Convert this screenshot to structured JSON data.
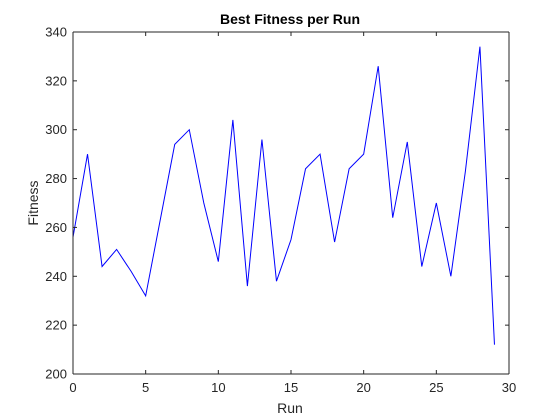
{
  "chart_data": {
    "type": "line",
    "title": "Best Fitness per Run",
    "xlabel": "Run",
    "ylabel": "Fitness",
    "xlim": [
      0,
      30
    ],
    "ylim": [
      200,
      340
    ],
    "xticks": [
      0,
      5,
      10,
      15,
      20,
      25,
      30
    ],
    "yticks": [
      200,
      220,
      240,
      260,
      280,
      300,
      320,
      340
    ],
    "grid": false,
    "line_color": "#0000ff",
    "series": [
      {
        "x": [
          0,
          1,
          2,
          3,
          4,
          5,
          6,
          7,
          8,
          9,
          10,
          11,
          12,
          13,
          14,
          15,
          16,
          17,
          18,
          19,
          20,
          21,
          22,
          23,
          24,
          25,
          26,
          27,
          28,
          29
        ],
        "values": [
          256,
          290,
          244,
          251,
          242,
          232,
          263,
          294,
          300,
          270,
          246,
          304,
          236,
          296,
          238,
          255,
          284,
          290,
          254,
          284,
          290,
          326,
          264,
          295,
          244,
          270,
          240,
          283,
          334,
          212
        ]
      }
    ]
  }
}
